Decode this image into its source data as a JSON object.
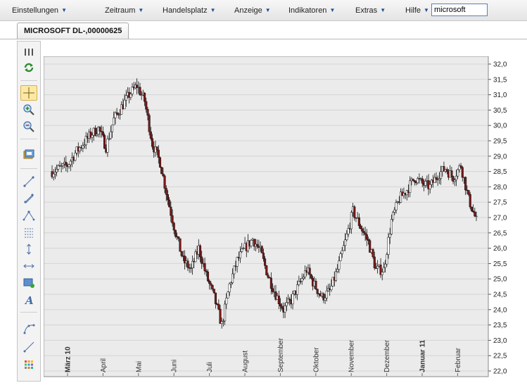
{
  "menu": {
    "items": [
      {
        "label": "Einstellungen"
      },
      {
        "label": "Zeitraum"
      },
      {
        "label": "Handelsplatz"
      },
      {
        "label": "Anzeige"
      },
      {
        "label": "Indikatoren"
      },
      {
        "label": "Extras"
      },
      {
        "label": "Hilfe"
      }
    ],
    "search_value": "microsoft"
  },
  "tab": {
    "label": "MICROSOFT DL-,00000625"
  },
  "toolbar": {
    "icons": [
      "columns-icon",
      "refresh-icon",
      "crosshair-icon",
      "zoom-in-icon",
      "zoom-out-icon",
      "chart-settings-icon",
      "line-tool-icon",
      "segment-tool-icon",
      "channel-tool-icon",
      "fibonacci-tool-icon",
      "vertical-line-icon",
      "horizontal-line-icon",
      "rectangle-tool-icon",
      "text-tool-icon",
      "curve-tool-icon",
      "ray-tool-icon",
      "palette-icon"
    ]
  },
  "chart_data": {
    "type": "candlestick",
    "title": "",
    "xlabel": "",
    "ylabel": "",
    "ylim": [
      22.0,
      32.0
    ],
    "y_ticks": [
      "22,0",
      "22,5",
      "23,0",
      "23,5",
      "24,0",
      "24,5",
      "25,0",
      "25,5",
      "26,0",
      "26,5",
      "27,0",
      "27,5",
      "28,0",
      "28,5",
      "29,0",
      "29,5",
      "30,0",
      "30,5",
      "31,0",
      "31,5",
      "32,0"
    ],
    "grid": true,
    "up_color": "#ffffff",
    "down_color": "#7a1818",
    "months": [
      {
        "label": "März 10",
        "strong": true
      },
      {
        "label": "April",
        "strong": false
      },
      {
        "label": "Mai",
        "strong": false
      },
      {
        "label": "Juni",
        "strong": false
      },
      {
        "label": "Juli",
        "strong": false
      },
      {
        "label": "August",
        "strong": false
      },
      {
        "label": "September",
        "strong": false
      },
      {
        "label": "Oktober",
        "strong": false
      },
      {
        "label": "November",
        "strong": false
      },
      {
        "label": "Dezember",
        "strong": false
      },
      {
        "label": "Januar 11",
        "strong": true
      },
      {
        "label": "Februar",
        "strong": false
      }
    ],
    "weekly_close": [
      28.5,
      28.6,
      28.7,
      29.1,
      29.4,
      29.7,
      29.9,
      29.3,
      30.2,
      30.6,
      31.0,
      31.3,
      30.8,
      29.4,
      28.8,
      27.6,
      26.5,
      25.6,
      25.3,
      26.0,
      25.1,
      24.4,
      23.5,
      24.8,
      25.6,
      26.0,
      26.3,
      25.9,
      25.1,
      24.5,
      24.0,
      24.3,
      24.8,
      25.3,
      24.8,
      24.4,
      24.6,
      25.3,
      26.2,
      27.2,
      26.7,
      26.2,
      25.3,
      25.3,
      26.9,
      27.6,
      27.9,
      28.3,
      28.1,
      28.0,
      28.4,
      28.6,
      28.3,
      28.7,
      27.6,
      26.9
    ]
  }
}
